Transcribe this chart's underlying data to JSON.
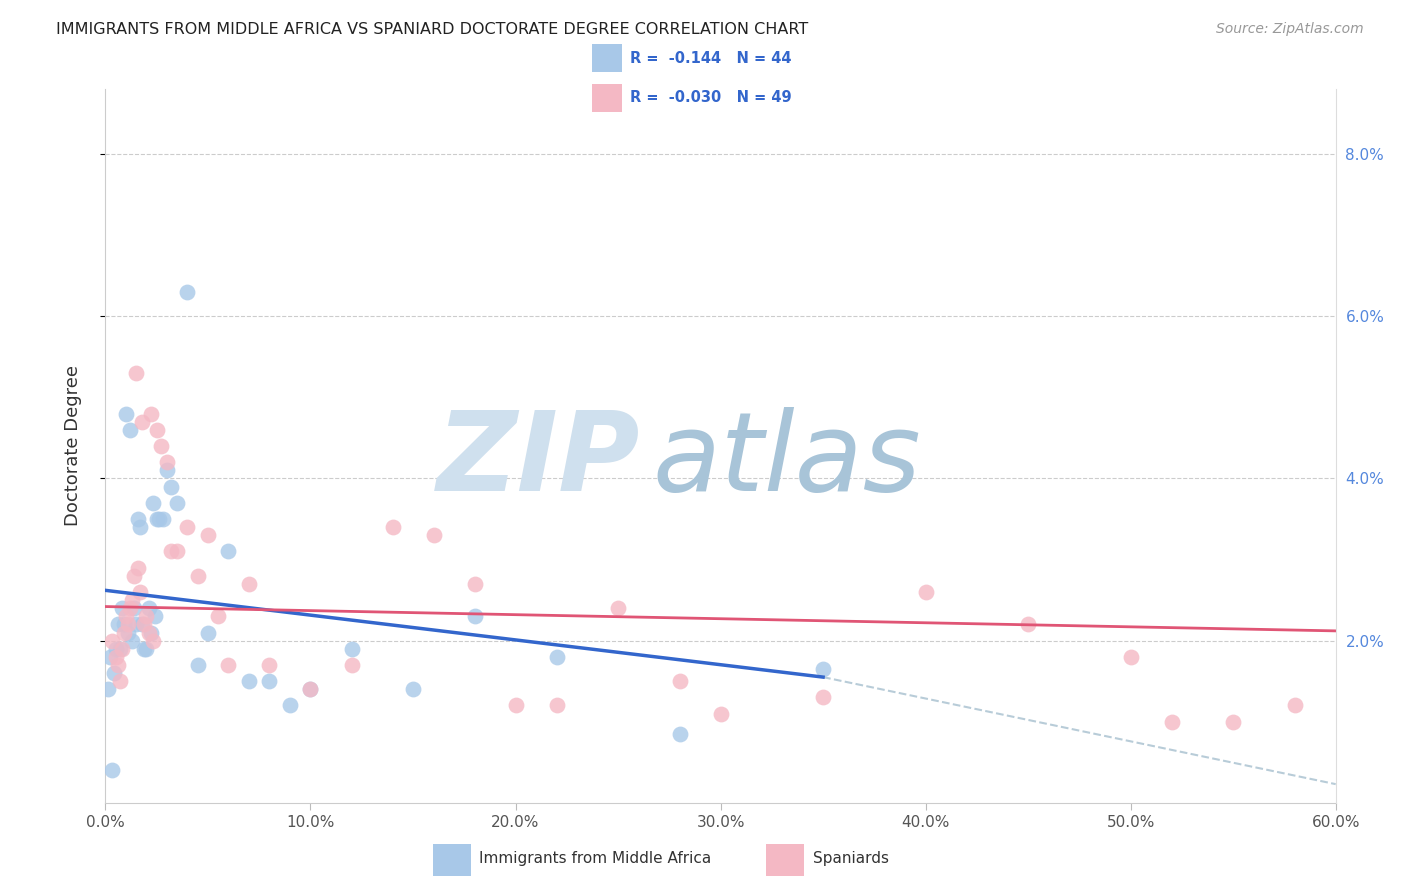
{
  "title": "IMMIGRANTS FROM MIDDLE AFRICA VS SPANIARD DOCTORATE DEGREE CORRELATION CHART",
  "source": "Source: ZipAtlas.com",
  "ylabel": "Doctorate Degree",
  "x_tick_labels": [
    "0.0%",
    "10.0%",
    "20.0%",
    "30.0%",
    "40.0%",
    "50.0%",
    "60.0%"
  ],
  "x_tick_values": [
    0.0,
    10.0,
    20.0,
    30.0,
    40.0,
    50.0,
    60.0
  ],
  "y_tick_labels": [
    "2.0%",
    "4.0%",
    "6.0%",
    "8.0%"
  ],
  "y_tick_values": [
    2.0,
    4.0,
    6.0,
    8.0
  ],
  "xlim": [
    0.0,
    60.0
  ],
  "ylim": [
    0.0,
    8.8
  ],
  "legend_r1_text": "R =  -0.144   N = 44",
  "legend_r2_text": "R =  -0.030   N = 49",
  "legend_label1": "Immigrants from Middle Africa",
  "legend_label2": "Spaniards",
  "color_blue": "#a8c8e8",
  "color_pink": "#f4b8c4",
  "color_blue_line": "#3366cc",
  "color_pink_line": "#e05575",
  "color_dashed": "#b8ccd8",
  "color_legend_text": "#3366cc",
  "blue_x": [
    0.1,
    0.2,
    0.3,
    0.4,
    0.5,
    0.6,
    0.7,
    0.8,
    0.9,
    1.0,
    1.1,
    1.2,
    1.3,
    1.4,
    1.5,
    1.6,
    1.7,
    1.8,
    1.9,
    2.0,
    2.1,
    2.2,
    2.3,
    2.4,
    2.5,
    2.6,
    2.8,
    3.0,
    3.2,
    3.5,
    4.0,
    4.5,
    5.0,
    6.0,
    7.0,
    8.0,
    9.0,
    10.0,
    12.0,
    15.0,
    18.0,
    22.0,
    28.0,
    35.0
  ],
  "blue_y": [
    1.4,
    1.8,
    0.4,
    1.6,
    1.9,
    2.2,
    1.9,
    2.4,
    2.2,
    4.8,
    2.1,
    4.6,
    2.0,
    2.4,
    2.2,
    3.5,
    3.4,
    2.2,
    1.9,
    1.9,
    2.4,
    2.1,
    3.7,
    2.3,
    3.5,
    3.5,
    3.5,
    4.1,
    3.9,
    3.7,
    6.3,
    1.7,
    2.1,
    3.1,
    1.5,
    1.5,
    1.2,
    1.4,
    1.9,
    1.4,
    2.3,
    1.8,
    0.85,
    1.65
  ],
  "pink_x": [
    0.3,
    0.5,
    0.6,
    0.7,
    0.8,
    0.9,
    1.0,
    1.1,
    1.2,
    1.3,
    1.4,
    1.5,
    1.6,
    1.7,
    1.8,
    1.9,
    2.0,
    2.1,
    2.2,
    2.3,
    2.5,
    2.7,
    3.0,
    3.2,
    3.5,
    4.0,
    4.5,
    5.0,
    5.5,
    6.0,
    7.0,
    8.0,
    10.0,
    12.0,
    14.0,
    16.0,
    18.0,
    20.0,
    22.0,
    25.0,
    28.0,
    30.0,
    35.0,
    40.0,
    45.0,
    50.0,
    52.0,
    55.0,
    58.0
  ],
  "pink_y": [
    2.0,
    1.8,
    1.7,
    1.5,
    1.9,
    2.1,
    2.3,
    2.2,
    2.4,
    2.5,
    2.8,
    5.3,
    2.9,
    2.6,
    4.7,
    2.2,
    2.3,
    2.1,
    4.8,
    2.0,
    4.6,
    4.4,
    4.2,
    3.1,
    3.1,
    3.4,
    2.8,
    3.3,
    2.3,
    1.7,
    2.7,
    1.7,
    1.4,
    1.7,
    3.4,
    3.3,
    2.7,
    1.2,
    1.2,
    2.4,
    1.5,
    1.1,
    1.3,
    2.6,
    2.2,
    1.8,
    1.0,
    1.0,
    1.2
  ],
  "blue_trend_x0": 0.0,
  "blue_trend_y0": 2.62,
  "blue_trend_x1": 35.0,
  "blue_trend_y1": 1.55,
  "blue_trend_dash_x1": 60.0,
  "blue_trend_dash_y1": 0.23,
  "pink_trend_x0": 0.0,
  "pink_trend_y0": 2.42,
  "pink_trend_x1": 60.0,
  "pink_trend_y1": 2.12
}
